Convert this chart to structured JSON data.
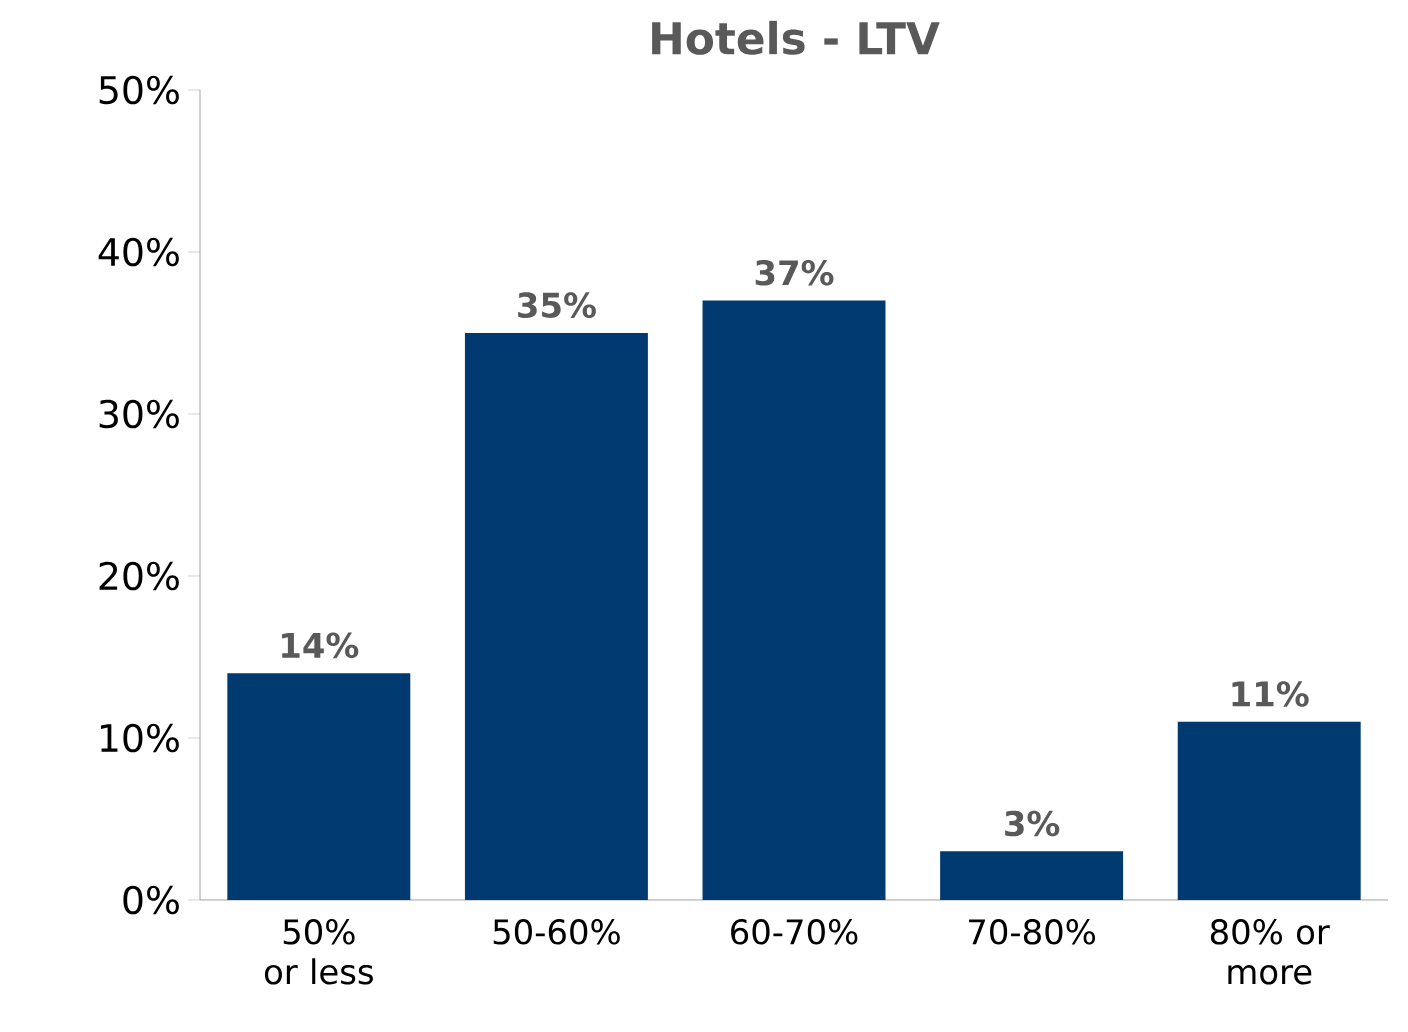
{
  "chart_data": {
    "type": "bar",
    "title": "Hotels - LTV",
    "categories": [
      "50% or less",
      "50-60%",
      "60-70%",
      "70-80%",
      "80% or more"
    ],
    "values": [
      14,
      35,
      37,
      3,
      11
    ],
    "value_labels": [
      "14%",
      "35%",
      "37%",
      "3%",
      "11%"
    ],
    "color": "#003a70",
    "ylim": [
      0,
      50
    ],
    "yticks": [
      {
        "value": 0,
        "label": "0%"
      },
      {
        "value": 10,
        "label": "10%"
      },
      {
        "value": 20,
        "label": "20%"
      },
      {
        "value": 30,
        "label": "30%"
      },
      {
        "value": 40,
        "label": "40%"
      },
      {
        "value": 50,
        "label": "50%"
      }
    ],
    "grid": false
  }
}
